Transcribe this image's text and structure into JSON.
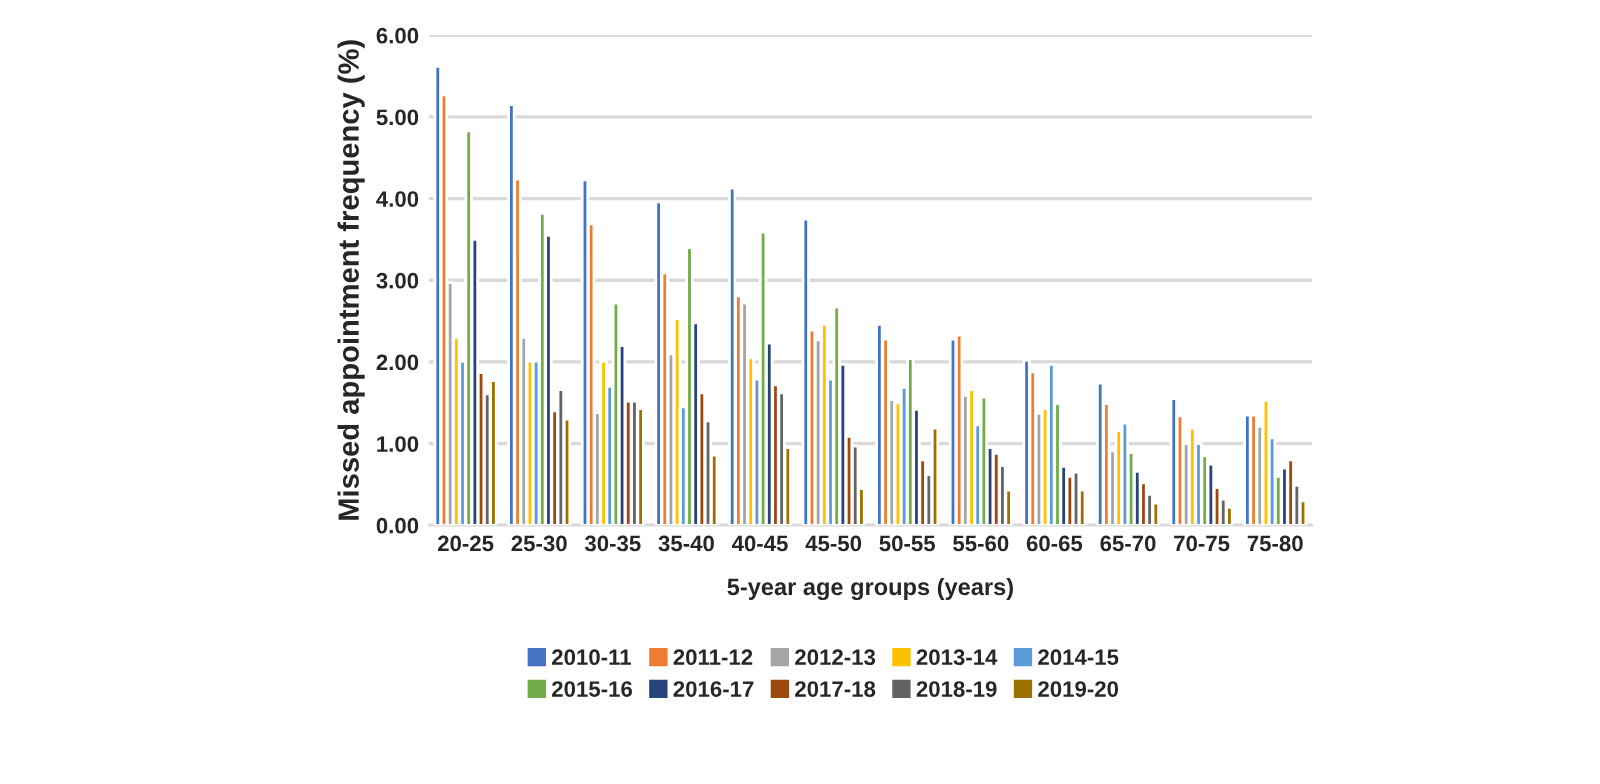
{
  "chart_data": {
    "type": "bar",
    "xlabel": "5-year age groups (years)",
    "ylabel": "Missed appointment frequency (%)",
    "categories": [
      "20-25",
      "25-30",
      "30-35",
      "35-40",
      "40-45",
      "45-50",
      "50-55",
      "55-60",
      "60-65",
      "65-70",
      "70-75",
      "75-80"
    ],
    "series": [
      {
        "name": "2010-11",
        "color": "#4472c4",
        "values": [
          5.62,
          5.15,
          4.23,
          3.96,
          4.13,
          3.75,
          2.46,
          2.28,
          2.02,
          1.74,
          1.55,
          1.35
        ]
      },
      {
        "name": "2011-12",
        "color": "#ed7d31",
        "values": [
          5.27,
          4.24,
          3.69,
          3.09,
          2.81,
          2.39,
          2.28,
          2.33,
          1.88,
          1.49,
          1.34,
          1.35
        ]
      },
      {
        "name": "2012-13",
        "color": "#a5a5a5",
        "values": [
          2.97,
          2.3,
          1.38,
          2.1,
          2.72,
          2.27,
          1.54,
          1.59,
          1.37,
          0.91,
          1.0,
          1.21
        ]
      },
      {
        "name": "2013-14",
        "color": "#ffc000",
        "values": [
          2.3,
          2.01,
          2.01,
          2.53,
          2.05,
          2.46,
          1.5,
          1.66,
          1.43,
          1.16,
          1.19,
          1.53
        ]
      },
      {
        "name": "2014-15",
        "color": "#5b9bd5",
        "values": [
          2.01,
          2.01,
          1.7,
          1.45,
          1.79,
          1.79,
          1.69,
          1.23,
          1.97,
          1.25,
          1.0,
          1.07
        ]
      },
      {
        "name": "2015-16",
        "color": "#70ad47",
        "values": [
          4.83,
          3.82,
          2.72,
          3.4,
          3.59,
          2.67,
          2.04,
          1.57,
          1.49,
          0.89,
          0.85,
          0.6
        ]
      },
      {
        "name": "2016-17",
        "color": "#264478",
        "values": [
          3.5,
          3.55,
          2.2,
          2.48,
          2.23,
          1.97,
          1.42,
          0.95,
          0.72,
          0.66,
          0.75,
          0.7
        ]
      },
      {
        "name": "2017-18",
        "color": "#9e480e",
        "values": [
          1.87,
          1.4,
          1.52,
          1.62,
          1.72,
          1.09,
          0.8,
          0.88,
          0.6,
          0.52,
          0.46,
          0.8
        ]
      },
      {
        "name": "2018-19",
        "color": "#636363",
        "values": [
          1.61,
          1.66,
          1.52,
          1.28,
          1.62,
          0.97,
          0.62,
          0.73,
          0.65,
          0.38,
          0.32,
          0.49
        ]
      },
      {
        "name": "2019-20",
        "color": "#997300",
        "values": [
          1.77,
          1.3,
          1.43,
          0.86,
          0.95,
          0.45,
          1.19,
          0.43,
          0.43,
          0.27,
          0.22,
          0.3
        ]
      }
    ],
    "ylim": [
      0,
      6
    ],
    "yticks": [
      {
        "value": 0,
        "label": "0.00"
      },
      {
        "value": 1,
        "label": "1.00"
      },
      {
        "value": 2,
        "label": "2.00"
      },
      {
        "value": 3,
        "label": "3.00"
      },
      {
        "value": 4,
        "label": "4.00"
      },
      {
        "value": 5,
        "label": "5.00"
      },
      {
        "value": 6,
        "label": "6.00"
      }
    ],
    "grid": "y",
    "legend": "bottom"
  }
}
